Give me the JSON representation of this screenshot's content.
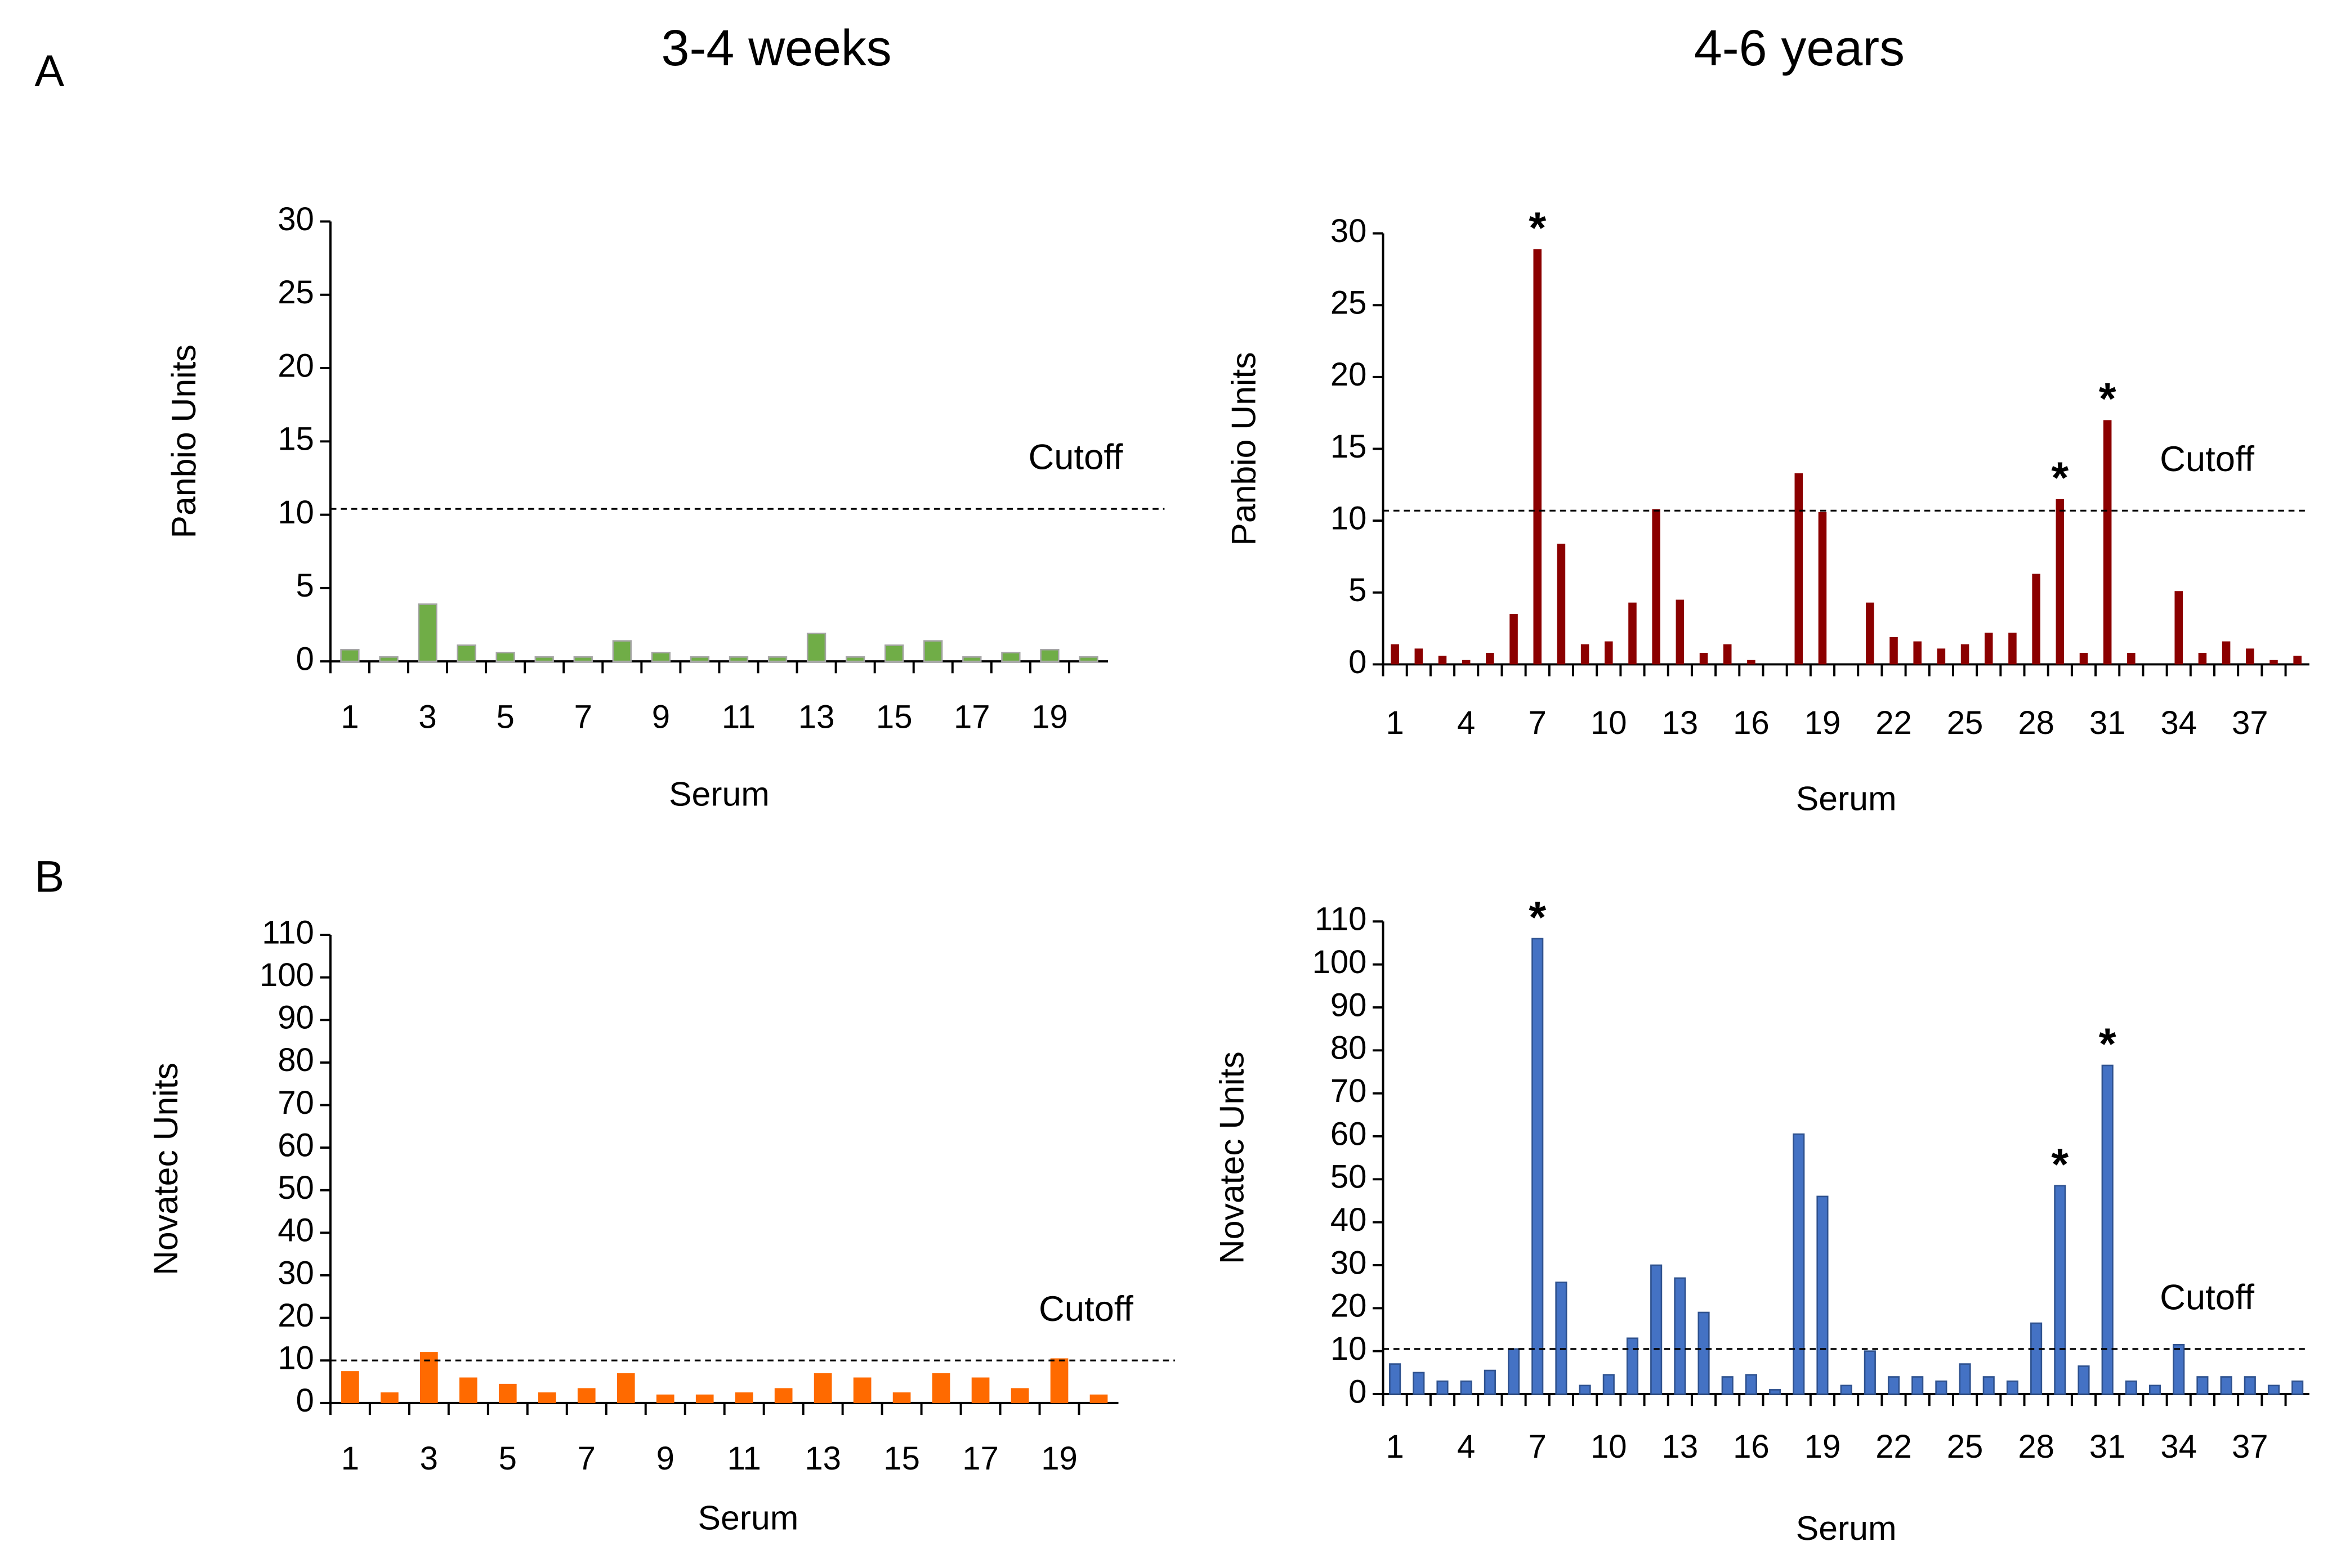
{
  "panel_labels": [
    "A",
    "B"
  ],
  "column_titles": [
    "3-4 weeks",
    "4-6 years"
  ],
  "chart_data": [
    {
      "type": "bar",
      "ylabel": "Panbio Units",
      "xlabel": "Serum",
      "color": "#70ad47",
      "x": [
        1,
        2,
        3,
        4,
        5,
        6,
        7,
        8,
        9,
        10,
        11,
        12,
        13,
        14,
        15,
        16,
        17,
        18,
        19,
        20
      ],
      "values": [
        0.8,
        0.3,
        3.9,
        1.1,
        0.6,
        0.3,
        0.3,
        1.4,
        0.6,
        0.3,
        0.3,
        0.3,
        1.9,
        0.3,
        1.1,
        1.4,
        0.3,
        0.6,
        0.8,
        0.3
      ],
      "xlim": [
        0.5,
        20.5
      ],
      "xticks": [
        1,
        3,
        5,
        7,
        9,
        11,
        13,
        15,
        17,
        19
      ],
      "ylim": [
        0,
        30
      ],
      "yticks": [
        0,
        5,
        10,
        15,
        20,
        25,
        30
      ],
      "cutoff": {
        "value": 10.4,
        "label": "Cutoff"
      },
      "annotations": []
    },
    {
      "type": "bar",
      "ylabel": "Panbio Units",
      "xlabel": "Serum",
      "color": "#8b0000",
      "x": [
        1,
        2,
        3,
        4,
        5,
        6,
        7,
        8,
        9,
        10,
        11,
        12,
        13,
        14,
        15,
        16,
        17,
        18,
        19,
        20,
        21,
        22,
        23,
        24,
        25,
        26,
        27,
        28,
        29,
        30,
        31,
        32,
        33,
        34,
        35,
        36,
        37,
        38,
        39
      ],
      "values": [
        1.4,
        1.1,
        0.6,
        0.3,
        0.8,
        3.5,
        28.9,
        8.4,
        1.4,
        1.6,
        4.3,
        10.8,
        4.5,
        0.8,
        1.4,
        0.3,
        0,
        13.3,
        10.6,
        0,
        4.3,
        1.9,
        1.6,
        1.1,
        1.4,
        2.2,
        2.2,
        6.3,
        11.5,
        0.8,
        17.0,
        0.8,
        0,
        5.1,
        0.8,
        1.6,
        1.1,
        0.3,
        0.6
      ],
      "xlim": [
        0.5,
        39.5
      ],
      "xticks": [
        1,
        4,
        7,
        10,
        13,
        16,
        19,
        22,
        25,
        28,
        31,
        34,
        37
      ],
      "ylim": [
        0,
        30
      ],
      "yticks": [
        0,
        5,
        10,
        15,
        20,
        25,
        30
      ],
      "cutoff": {
        "value": 10.7,
        "label": "Cutoff"
      },
      "annotations": [
        {
          "text": "*",
          "x": 7
        },
        {
          "text": "*",
          "x": 29
        },
        {
          "text": "*",
          "x": 31
        }
      ]
    },
    {
      "type": "bar",
      "ylabel": "Novatec Units",
      "xlabel": "Serum",
      "color": "#ff6a00",
      "x": [
        1,
        2,
        3,
        4,
        5,
        6,
        7,
        8,
        9,
        10,
        11,
        12,
        13,
        14,
        15,
        16,
        17,
        18,
        19,
        20
      ],
      "values": [
        7.5,
        2.5,
        12,
        6,
        4.5,
        2.5,
        3.5,
        7,
        2,
        2,
        2.5,
        3.5,
        7,
        6,
        2.5,
        7,
        6,
        3.5,
        10.5,
        2
      ],
      "xlim": [
        0.5,
        20.5
      ],
      "xticks": [
        1,
        3,
        5,
        7,
        9,
        11,
        13,
        15,
        17,
        19
      ],
      "ylim": [
        0,
        110
      ],
      "yticks": [
        0,
        10,
        20,
        30,
        40,
        50,
        60,
        70,
        80,
        90,
        100,
        110
      ],
      "cutoff": {
        "value": 10,
        "label": "Cutoff"
      },
      "annotations": []
    },
    {
      "type": "bar",
      "ylabel": "Novatec Units",
      "xlabel": "Serum",
      "color": "#4472c4",
      "x": [
        1,
        2,
        3,
        4,
        5,
        6,
        7,
        8,
        9,
        10,
        11,
        12,
        13,
        14,
        15,
        16,
        17,
        18,
        19,
        20,
        21,
        22,
        23,
        24,
        25,
        26,
        27,
        28,
        29,
        30,
        31,
        32,
        33,
        34,
        35,
        36,
        37,
        38,
        39
      ],
      "values": [
        7,
        5,
        3,
        3,
        5.5,
        10.5,
        106,
        26,
        2,
        4.5,
        13,
        30,
        27,
        19,
        4,
        4.5,
        1,
        60.5,
        46,
        2,
        10,
        4,
        4,
        3,
        7,
        4,
        3,
        16.5,
        48.5,
        6.5,
        76.5,
        3,
        2,
        11.5,
        4,
        4,
        4,
        2,
        3
      ],
      "xlim": [
        0.5,
        39.5
      ],
      "xticks": [
        1,
        4,
        7,
        10,
        13,
        16,
        19,
        22,
        25,
        28,
        31,
        34,
        37
      ],
      "ylim": [
        0,
        110
      ],
      "yticks": [
        0,
        10,
        20,
        30,
        40,
        50,
        60,
        70,
        80,
        90,
        100,
        110
      ],
      "cutoff": {
        "value": 10.5,
        "label": "Cutoff"
      },
      "annotations": [
        {
          "text": "*",
          "x": 7
        },
        {
          "text": "*",
          "x": 29
        },
        {
          "text": "*",
          "x": 31
        }
      ]
    }
  ]
}
